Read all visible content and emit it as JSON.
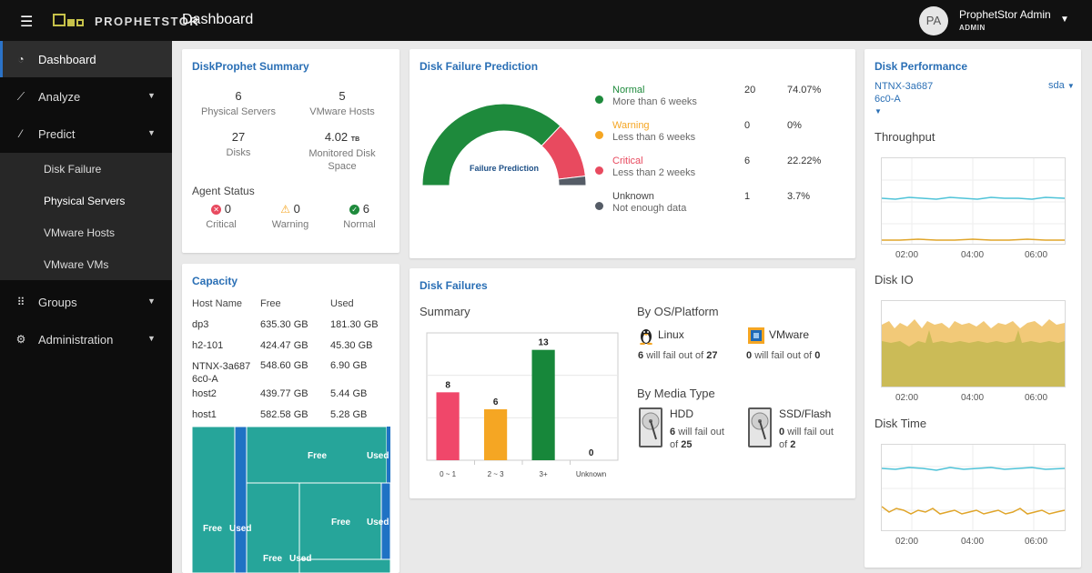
{
  "header": {
    "brand": "PROPHETSTOR",
    "title": "Dashboard",
    "user": {
      "initials": "PA",
      "name": "ProphetStor Admin",
      "role": "ADMIN"
    }
  },
  "sidebar": {
    "items": [
      {
        "label": "Dashboard",
        "icon": "dashboard-icon"
      },
      {
        "label": "Analyze",
        "icon": "chart-line-icon"
      },
      {
        "label": "Predict",
        "icon": "wand-icon"
      },
      {
        "label": "Groups",
        "icon": "grid-icon"
      },
      {
        "label": "Administration",
        "icon": "gear-icon"
      }
    ],
    "predict_sub": [
      "Disk Failure",
      "Physical Servers",
      "VMware Hosts",
      "VMware VMs"
    ]
  },
  "summary": {
    "title": "DiskProphet Summary",
    "stats": [
      {
        "value": "6",
        "label": "Physical Servers"
      },
      {
        "value": "5",
        "label": "VMware Hosts"
      },
      {
        "value": "27",
        "label": "Disks"
      },
      {
        "value": "4.02",
        "unit": "TB",
        "label": "Monitored Disk Space"
      }
    ],
    "agent_title": "Agent Status",
    "agents": [
      {
        "value": "0",
        "label": "Critical",
        "color": "#e84a5f"
      },
      {
        "value": "0",
        "label": "Warning",
        "color": "#f5a623"
      },
      {
        "value": "6",
        "label": "Normal",
        "color": "#1e8a3c"
      }
    ]
  },
  "capacity": {
    "title": "Capacity",
    "headers": [
      "Host Name",
      "Free",
      "Used"
    ],
    "rows": [
      [
        "dp3",
        "635.30 GB",
        "181.30 GB"
      ],
      [
        "h2-101",
        "424.47 GB",
        "45.30 GB"
      ],
      [
        "NTNX-3a6876c0-A",
        "548.60 GB",
        "6.90 GB"
      ],
      [
        "host2",
        "439.77 GB",
        "5.44 GB"
      ],
      [
        "host1",
        "582.58 GB",
        "5.28 GB"
      ]
    ],
    "treemap_labels": {
      "free": "Free",
      "used": "Used"
    }
  },
  "prediction": {
    "title": "Disk Failure Prediction",
    "gauge_label": "Failure Prediction",
    "legend": [
      {
        "name": "Normal",
        "desc": "More than 6 weeks",
        "count": "20",
        "pct": "74.07%",
        "color": "#1e8a3c",
        "value": 20
      },
      {
        "name": "Warning",
        "desc": "Less than 6 weeks",
        "count": "0",
        "pct": "0%",
        "color": "#f5a623",
        "value": 0
      },
      {
        "name": "Critical",
        "desc": "Less than 2 weeks",
        "count": "6",
        "pct": "22.22%",
        "color": "#e84a5f",
        "value": 6
      },
      {
        "name": "Unknown",
        "desc": "Not enough data",
        "count": "1",
        "pct": "3.7%",
        "color": "#555c66",
        "value": 1
      }
    ]
  },
  "failures": {
    "title": "Disk Failures",
    "summary_title": "Summary",
    "chart_data": {
      "type": "bar",
      "categories": [
        "0 ~ 1",
        "2 ~ 3",
        "3+",
        "Unknown"
      ],
      "values": [
        8,
        6,
        13,
        0
      ],
      "colors": [
        "#f0476a",
        "#f5a623",
        "#17873a",
        "#999999"
      ],
      "ylim": [
        0,
        15
      ]
    },
    "os_title": "By OS/Platform",
    "os": [
      {
        "name": "Linux",
        "icon": "linux-icon",
        "fail": "6",
        "mid": "will fail out of",
        "total": "27"
      },
      {
        "name": "VMware",
        "icon": "vmware-icon",
        "fail": "0",
        "mid": "will fail out of",
        "total": "0"
      }
    ],
    "media_title": "By Media Type",
    "media": [
      {
        "name": "HDD",
        "icon": "hdd-icon",
        "fail": "6",
        "line1": "will fail out",
        "line2": "of",
        "total": "25"
      },
      {
        "name": "SSD/Flash",
        "icon": "ssd-icon",
        "fail": "0",
        "line1": "will fail out",
        "line2": "of",
        "total": "2"
      }
    ]
  },
  "performance": {
    "title": "Disk Performance",
    "host": "NTNX-3a6876c0-A",
    "disk": "sda",
    "charts": [
      {
        "label": "Throughput",
        "ticks": [
          "02:00",
          "04:00",
          "06:00"
        ]
      },
      {
        "label": "Disk IO",
        "ticks": [
          "02:00",
          "04:00",
          "06:00"
        ]
      },
      {
        "label": "Disk Time",
        "ticks": [
          "02:00",
          "04:00",
          "06:00"
        ]
      }
    ]
  }
}
